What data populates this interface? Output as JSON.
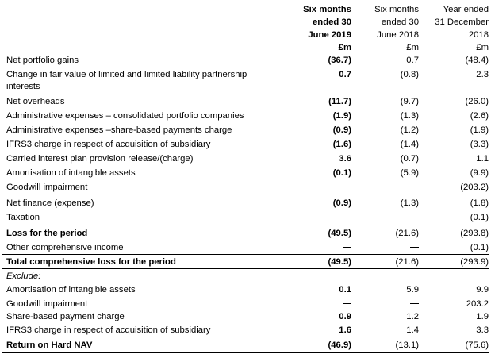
{
  "header": {
    "col1": [
      "Six months",
      "ended 30",
      "June 2019",
      "£m"
    ],
    "col2": [
      "Six months",
      "ended 30",
      "June 2018",
      "£m"
    ],
    "col3": [
      "Year ended",
      "31 December",
      "2018",
      "£m"
    ]
  },
  "rows": [
    {
      "label": "Net portfolio gains",
      "v1": "(36.7)",
      "v2": "0.7",
      "v3": "(48.4)"
    },
    {
      "label": "Change in fair value of limited and limited liability partnership",
      "label2": "interests",
      "v1": "0.7",
      "v2": "(0.8)",
      "v3": "2.3"
    },
    {
      "label": "Net overheads",
      "v1": "(11.7)",
      "v2": "(9.7)",
      "v3": "(26.0)"
    },
    {
      "label": "Administrative expenses – consolidated portfolio companies",
      "v1": "(1.9)",
      "v2": "(1.3)",
      "v3": "(2.6)"
    },
    {
      "label": "Administrative expenses –share-based payments charge",
      "v1": "(0.9)",
      "v2": "(1.2)",
      "v3": "(1.9)"
    },
    {
      "label": "IFRS3 charge in respect of acquisition of subsidiary",
      "v1": "(1.6)",
      "v2": "(1.4)",
      "v3": "(3.3)"
    },
    {
      "label": "Carried interest plan provision release/(charge)",
      "v1": "3.6",
      "v2": "(0.7)",
      "v3": "1.1"
    },
    {
      "label": "Amortisation of intangible assets",
      "v1": "(0.1)",
      "v2": "(5.9)",
      "v3": "(9.9)"
    },
    {
      "label": "Goodwill impairment",
      "v1": "—",
      "v2": "—",
      "v3": "(203.2)"
    },
    {
      "label": "Net finance (expense)",
      "v1": "(0.9)",
      "v2": "(1.3)",
      "v3": "(1.8)"
    },
    {
      "label": "Taxation",
      "v1": "—",
      "v2": "—",
      "v3": "(0.1)"
    },
    {
      "label": "Loss for the period",
      "v1": "(49.5)",
      "v2": "(21.6)",
      "v3": "(293.8)"
    },
    {
      "label": "Other comprehensive income",
      "v1": "—",
      "v2": "—",
      "v3": "(0.1)"
    },
    {
      "label": "Total comprehensive loss for the period",
      "v1": "(49.5)",
      "v2": "(21.6)",
      "v3": "(293.9)"
    },
    {
      "label": "Exclude:",
      "v1": "",
      "v2": "",
      "v3": ""
    },
    {
      "label": "Amortisation of intangible assets",
      "v1": "0.1",
      "v2": "5.9",
      "v3": "9.9"
    },
    {
      "label": "Goodwill impairment",
      "v1": "—",
      "v2": "—",
      "v3": "203.2"
    },
    {
      "label": "Share-based payment charge",
      "v1": "0.9",
      "v2": "1.2",
      "v3": "1.9"
    },
    {
      "label": "IFRS3 charge in respect of acquisition of subsidiary",
      "v1": "1.6",
      "v2": "1.4",
      "v3": "3.3"
    },
    {
      "label": "Return on Hard NAV",
      "v1": "(46.9)",
      "v2": "(13.1)",
      "v3": "(75.6)"
    }
  ]
}
